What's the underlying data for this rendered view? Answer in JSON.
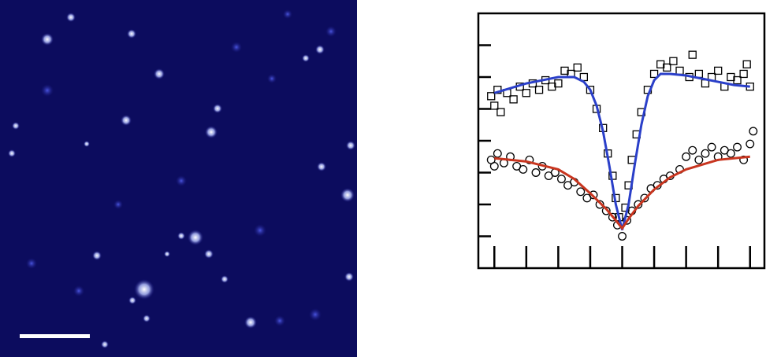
{
  "chart_data": {
    "type": "scatter",
    "xlim": [
      -4.5,
      4.45
    ],
    "ylim": [
      -1,
      7
    ],
    "xticks": [
      -4,
      -3,
      -2,
      -1,
      0,
      1,
      2,
      3,
      4
    ],
    "yticks": [
      0,
      1,
      2,
      3,
      4,
      5,
      6
    ],
    "series": [
      {
        "kind": "scatter",
        "marker": "square",
        "color": "#000000",
        "x": [
          -4.1,
          -4.0,
          -3.9,
          -3.8,
          -3.6,
          -3.4,
          -3.2,
          -3.0,
          -2.8,
          -2.6,
          -2.4,
          -2.2,
          -2.0,
          -1.8,
          -1.6,
          -1.4,
          -1.2,
          -1.0,
          -0.8,
          -0.6,
          -0.45,
          -0.3,
          -0.2,
          -0.1,
          0.1,
          0.2,
          0.3,
          0.45,
          0.6,
          0.8,
          1.0,
          1.2,
          1.4,
          1.6,
          1.8,
          2.1,
          2.2,
          2.4,
          2.6,
          2.8,
          3.0,
          3.2,
          3.4,
          3.6,
          3.8,
          4.0,
          3.9
        ],
        "values": [
          4.4,
          4.1,
          4.6,
          3.9,
          4.5,
          4.3,
          4.7,
          4.5,
          4.8,
          4.6,
          4.9,
          4.7,
          4.8,
          5.2,
          5.1,
          5.3,
          5.0,
          4.6,
          4.0,
          3.4,
          2.6,
          1.9,
          1.2,
          0.6,
          0.9,
          1.6,
          2.4,
          3.2,
          3.9,
          4.6,
          5.1,
          5.4,
          5.3,
          5.5,
          5.2,
          5.0,
          5.7,
          5.1,
          4.8,
          5.0,
          5.2,
          4.7,
          5.0,
          4.9,
          5.1,
          4.7,
          5.4
        ]
      },
      {
        "kind": "scatter",
        "marker": "circle",
        "color": "#000000",
        "x": [
          -4.1,
          -4.0,
          -3.9,
          -3.7,
          -3.5,
          -3.3,
          -3.1,
          -2.9,
          -2.7,
          -2.5,
          -2.3,
          -2.1,
          -1.9,
          -1.7,
          -1.5,
          -1.3,
          -1.1,
          -0.9,
          -0.7,
          -0.5,
          -0.3,
          -0.15,
          0,
          0.15,
          0.3,
          0.5,
          0.7,
          0.9,
          1.1,
          1.3,
          1.5,
          1.8,
          2.0,
          2.2,
          2.4,
          2.6,
          2.8,
          3.0,
          3.2,
          3.4,
          3.6,
          3.8,
          4.0,
          4.1
        ],
        "values": [
          2.4,
          2.2,
          2.6,
          2.3,
          2.5,
          2.2,
          2.1,
          2.4,
          2.0,
          2.2,
          1.9,
          2.0,
          1.8,
          1.6,
          1.7,
          1.4,
          1.2,
          1.3,
          1.0,
          0.8,
          0.6,
          0.35,
          0.0,
          0.5,
          0.8,
          1.0,
          1.2,
          1.5,
          1.6,
          1.8,
          1.9,
          2.1,
          2.5,
          2.7,
          2.4,
          2.6,
          2.8,
          2.5,
          2.7,
          2.6,
          2.8,
          2.4,
          2.9,
          3.3
        ]
      },
      {
        "kind": "line",
        "color": "#2a3fc9",
        "x": [
          -4,
          -3.5,
          -3,
          -2.5,
          -2,
          -1.5,
          -1.2,
          -1,
          -0.8,
          -0.6,
          -0.4,
          -0.2,
          0,
          0.2,
          0.4,
          0.6,
          0.8,
          1,
          1.2,
          1.5,
          2,
          2.5,
          3,
          3.5,
          4
        ],
        "values": [
          4.5,
          4.65,
          4.8,
          4.9,
          5.0,
          5.0,
          4.85,
          4.6,
          4.1,
          3.3,
          2.2,
          1.0,
          0.2,
          1.0,
          2.3,
          3.5,
          4.4,
          4.9,
          5.1,
          5.1,
          5.05,
          4.95,
          4.85,
          4.75,
          4.7
        ]
      },
      {
        "kind": "line",
        "color": "#c8351f",
        "x": [
          -4,
          -3,
          -2,
          -1.5,
          -1,
          -0.5,
          -0.2,
          0,
          0.2,
          0.5,
          1,
          1.5,
          2,
          3,
          4
        ],
        "values": [
          2.45,
          2.35,
          2.1,
          1.8,
          1.35,
          0.86,
          0.5,
          0.25,
          0.55,
          0.95,
          1.47,
          1.85,
          2.1,
          2.4,
          2.5
        ]
      }
    ]
  }
}
